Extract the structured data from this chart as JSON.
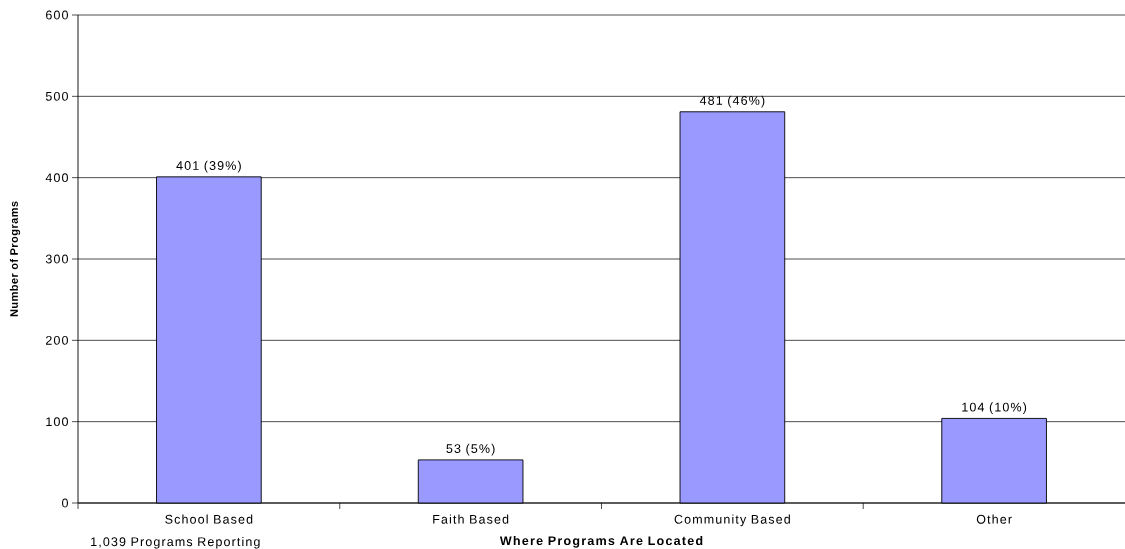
{
  "chart_data": {
    "type": "bar",
    "xlabel": "Where Programs Are Located",
    "ylabel": "Number of Programs",
    "annotations": [
      "1,039 Programs Reporting"
    ],
    "categories": [
      "School Based",
      "Faith Based",
      "Community Based",
      "Other"
    ],
    "values": [
      401,
      53,
      481,
      104
    ],
    "value_labels": [
      "401 (39%)",
      "53 (5%)",
      "481 (46%)",
      "104 (10%)"
    ],
    "color": "#9999ff",
    "ylim": [
      0,
      600
    ],
    "yticks": [
      0,
      100,
      200,
      300,
      400,
      500,
      600
    ],
    "grid": "y"
  }
}
